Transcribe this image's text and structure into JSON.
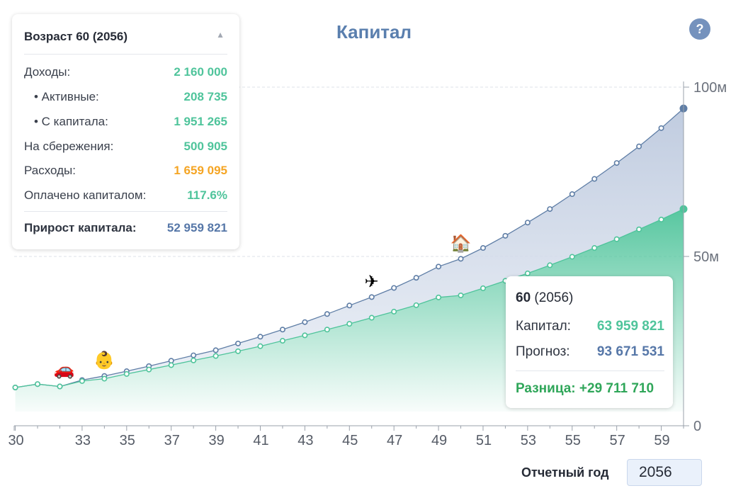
{
  "help_label": "?",
  "panel": {
    "title": "Возраст 60 (2056)",
    "collapse_icon": "▲",
    "rows": [
      {
        "label": "Доходы:",
        "value": "2 160 000"
      },
      {
        "label": "• Активные:",
        "value": "208 735"
      },
      {
        "label": "• С капитала:",
        "value": "1 951 265"
      },
      {
        "label": "На сбережения:",
        "value": "500 905"
      },
      {
        "label": "Расходы:",
        "value": "1 659 095"
      },
      {
        "label": "Оплачено капиталом:",
        "value": "117.6%"
      }
    ],
    "footer": {
      "label": "Прирост капитала:",
      "value": "52 959 821"
    }
  },
  "tooltip": {
    "age": "60",
    "year": "(2056)",
    "capital_label": "Капитал:",
    "capital_value": "63 959 821",
    "forecast_label": "Прогноз:",
    "forecast_value": "93 671 531",
    "diff": "Разница: +29 711 710"
  },
  "report_year": {
    "label": "Отчетный год",
    "value": "2056"
  },
  "colors": {
    "capital": "#4fc49b",
    "forecast": "#5f7ea6",
    "expenses": "#f5a524",
    "title": "#5a7fae",
    "diff": "#2fa659"
  },
  "chart_data": {
    "type": "area",
    "title": "Капитал",
    "x_ticks": [
      30,
      33,
      35,
      37,
      39,
      41,
      43,
      45,
      47,
      49,
      51,
      53,
      55,
      57,
      59
    ],
    "y_ticks": [
      {
        "value": 0,
        "label": "0"
      },
      {
        "value": 50,
        "label": "50м"
      },
      {
        "value": 100,
        "label": "100м"
      }
    ],
    "ylim": [
      0,
      100
    ],
    "xlim": [
      29.95,
      60
    ],
    "y_axis_position": "right",
    "grid": "horizontal-dashed",
    "x": [
      30,
      31,
      32,
      33,
      34,
      35,
      36,
      37,
      38,
      39,
      40,
      41,
      42,
      43,
      44,
      45,
      46,
      47,
      48,
      49,
      50,
      51,
      52,
      53,
      54,
      55,
      56,
      57,
      58,
      59,
      60
    ],
    "series": [
      {
        "values": [
          11.3,
          12.3,
          11.6,
          13.2,
          13.9,
          15.3,
          16.6,
          17.9,
          19.3,
          20.6,
          22.0,
          23.5,
          25.1,
          26.7,
          28.4,
          30.1,
          31.9,
          33.7,
          35.6,
          37.9,
          38.5,
          40.6,
          42.8,
          45.0,
          47.4,
          49.9,
          52.5,
          55.1,
          58.0,
          60.9,
          64.0
        ]
      },
      {
        "values": [
          11.3,
          12.3,
          11.6,
          13.5,
          14.7,
          16.1,
          17.6,
          19.2,
          20.8,
          22.3,
          24.3,
          26.3,
          28.4,
          30.6,
          33.0,
          35.5,
          38.0,
          40.7,
          43.7,
          47.0,
          49.3,
          52.5,
          56.1,
          60.0,
          64.0,
          68.4,
          72.9,
          77.6,
          82.5,
          87.9,
          93.7
        ]
      }
    ],
    "events": [
      {
        "x": 32.2,
        "icon": "car-icon",
        "glyph": "🚗"
      },
      {
        "x": 34,
        "icon": "child-icon",
        "glyph": "👶"
      },
      {
        "x": 46,
        "icon": "airplane-icon",
        "glyph": "✈"
      },
      {
        "x": 50,
        "icon": "house-icon",
        "glyph": "🏠"
      }
    ]
  }
}
